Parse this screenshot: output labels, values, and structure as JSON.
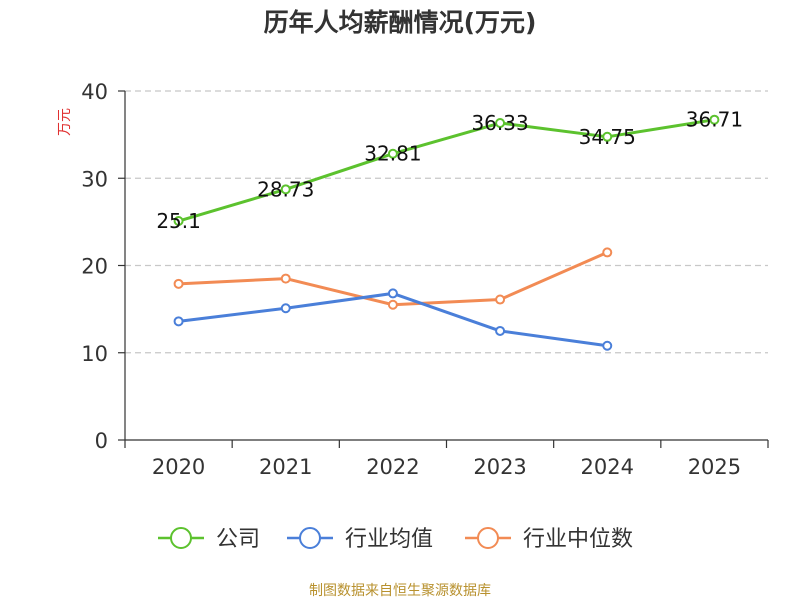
{
  "chart_data": {
    "type": "line",
    "title": "历年人均薪酬情况(万元)",
    "ylabel": "万元",
    "xlabel": "",
    "categories": [
      "2020",
      "2021",
      "2022",
      "2023",
      "2024",
      "2025"
    ],
    "ylim": [
      0,
      40
    ],
    "yticks": [
      0,
      10,
      20,
      30,
      40
    ],
    "grid": true,
    "legend_position": "bottom",
    "series": [
      {
        "name": "公司",
        "color": "#5cc22e",
        "values": [
          25.1,
          28.73,
          32.81,
          36.33,
          34.75,
          36.71
        ],
        "labels": [
          "25.1",
          "28.73",
          "32.81",
          "36.33",
          "34.75",
          "36.71"
        ]
      },
      {
        "name": "行业均值",
        "color": "#4a7fd9",
        "values": [
          13.6,
          15.1,
          16.8,
          12.5,
          10.8,
          null
        ]
      },
      {
        "name": "行业中位数",
        "color": "#f28b54",
        "values": [
          17.9,
          18.5,
          15.5,
          16.1,
          21.5,
          null
        ]
      }
    ]
  },
  "source_text": "制图数据来自恒生聚源数据库"
}
